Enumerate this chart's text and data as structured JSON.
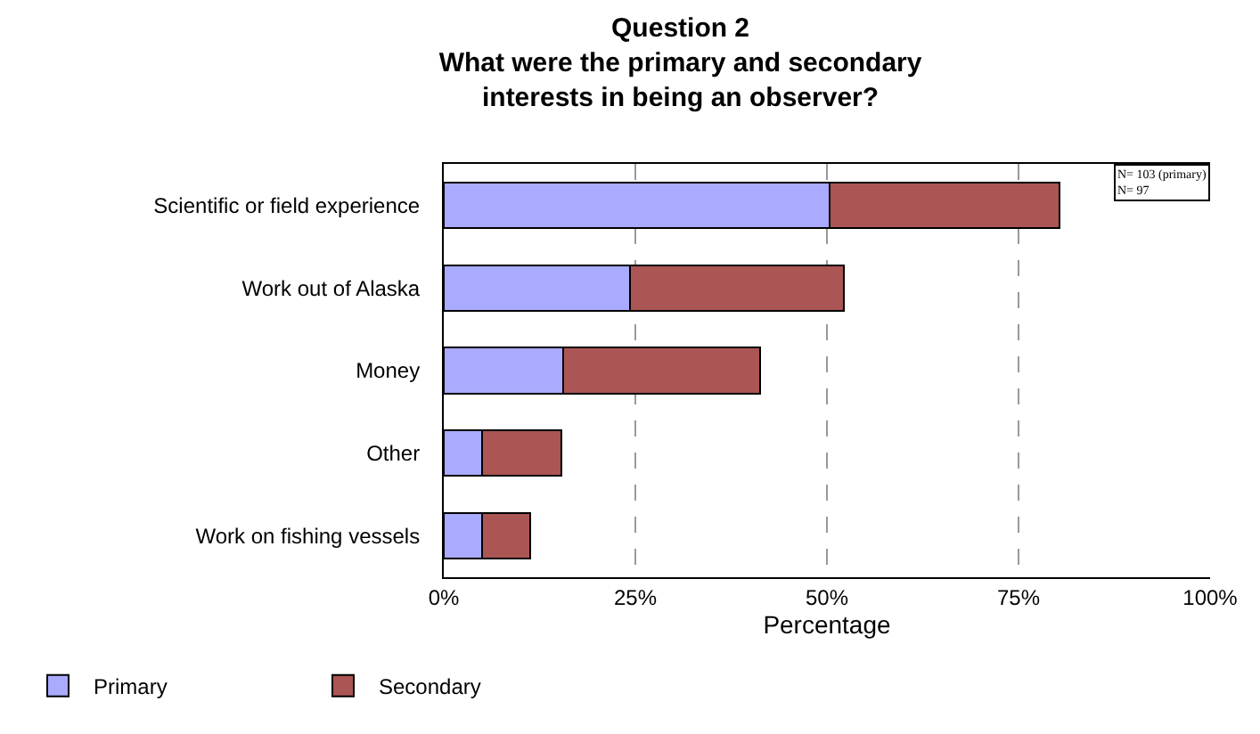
{
  "chart_data": {
    "type": "bar",
    "orientation": "horizontal",
    "stacked": true,
    "title": "Question 2\nWhat were the primary and secondary\ninterests in being an observer?",
    "xlabel": "Percentage",
    "categories": [
      "Scientific or field experience",
      "Work out of Alaska",
      "Money",
      "Other",
      "Work on fishing vessels"
    ],
    "series": [
      {
        "name": "Primary",
        "color": "#aaaaff",
        "values": [
          50.4,
          24.3,
          15.6,
          5.0,
          5.0
        ]
      },
      {
        "name": "Secondary",
        "color": "#ab5555",
        "values": [
          29.9,
          27.9,
          25.7,
          10.4,
          6.3
        ]
      }
    ],
    "xlim": [
      0,
      100
    ],
    "xticks": [
      {
        "value": 0,
        "label": "0%"
      },
      {
        "value": 25,
        "label": "25%"
      },
      {
        "value": 50,
        "label": "50%"
      },
      {
        "value": 75,
        "label": "75%"
      },
      {
        "value": 100,
        "label": "100%"
      }
    ],
    "grid": "x",
    "line_style": "dashed",
    "legend": "bottom left",
    "annotations": [
      "N= 103 (primary)\nN= 97"
    ]
  }
}
